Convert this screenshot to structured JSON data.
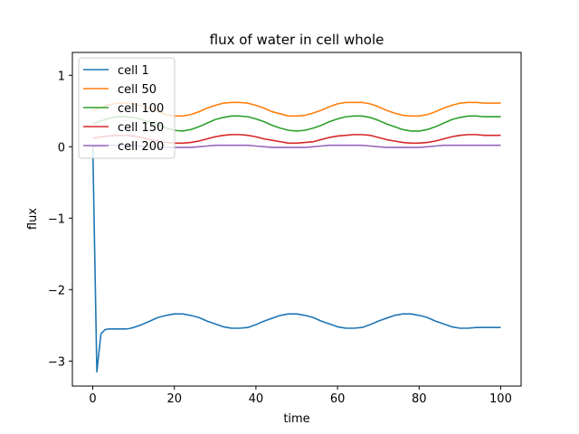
{
  "chart_data": {
    "type": "line",
    "title": "flux of water in cell whole",
    "xlabel": "time",
    "ylabel": "flux",
    "xlim": [
      -5,
      105
    ],
    "ylim": [
      -3.35,
      1.32
    ],
    "xticks": [
      0,
      20,
      40,
      60,
      80,
      100
    ],
    "xtick_labels": [
      "0",
      "20",
      "40",
      "60",
      "80",
      "100"
    ],
    "yticks": [
      -3,
      -2,
      -1,
      0,
      1
    ],
    "ytick_labels": [
      "−3",
      "−2",
      "−1",
      "0",
      "1"
    ],
    "grid": false,
    "legend_position": "top-left",
    "series": [
      {
        "name": "cell 1",
        "color": "#1f77b4",
        "x": [
          0,
          1,
          2,
          3,
          4,
          5,
          6,
          7,
          8,
          9,
          10,
          12,
          14,
          16,
          18,
          20,
          22,
          24,
          26,
          28,
          30,
          32,
          34,
          36,
          38,
          40,
          42,
          44,
          46,
          48,
          50,
          52,
          54,
          56,
          58,
          60,
          62,
          64,
          66,
          68,
          70,
          72,
          74,
          76,
          78,
          80,
          82,
          84,
          86,
          88,
          90,
          92,
          94,
          96,
          98,
          100
        ],
        "y": [
          0.02,
          -3.15,
          -2.62,
          -2.56,
          -2.55,
          -2.55,
          -2.55,
          -2.55,
          -2.55,
          -2.545,
          -2.53,
          -2.49,
          -2.44,
          -2.39,
          -2.36,
          -2.34,
          -2.34,
          -2.36,
          -2.39,
          -2.44,
          -2.48,
          -2.52,
          -2.54,
          -2.54,
          -2.53,
          -2.49,
          -2.44,
          -2.4,
          -2.36,
          -2.34,
          -2.34,
          -2.36,
          -2.39,
          -2.44,
          -2.48,
          -2.52,
          -2.54,
          -2.54,
          -2.53,
          -2.49,
          -2.44,
          -2.4,
          -2.36,
          -2.34,
          -2.34,
          -2.36,
          -2.39,
          -2.44,
          -2.48,
          -2.52,
          -2.54,
          -2.54,
          -2.53,
          -2.53,
          -2.53,
          -2.53
        ]
      },
      {
        "name": "cell 50",
        "color": "#ff7f0e",
        "x": [
          0,
          2,
          4,
          6,
          8,
          10,
          12,
          14,
          16,
          18,
          20,
          22,
          24,
          26,
          28,
          30,
          32,
          34,
          36,
          38,
          40,
          42,
          44,
          46,
          48,
          50,
          52,
          54,
          56,
          58,
          60,
          62,
          64,
          66,
          68,
          70,
          72,
          74,
          76,
          78,
          80,
          82,
          84,
          86,
          88,
          90,
          92,
          94,
          96,
          98,
          100
        ],
        "y": [
          0.5,
          0.55,
          0.59,
          0.61,
          0.61,
          0.6,
          0.57,
          0.53,
          0.49,
          0.45,
          0.43,
          0.43,
          0.45,
          0.49,
          0.54,
          0.58,
          0.61,
          0.62,
          0.62,
          0.61,
          0.58,
          0.54,
          0.49,
          0.46,
          0.43,
          0.43,
          0.44,
          0.47,
          0.51,
          0.56,
          0.6,
          0.62,
          0.62,
          0.62,
          0.6,
          0.56,
          0.51,
          0.47,
          0.44,
          0.43,
          0.43,
          0.45,
          0.49,
          0.54,
          0.58,
          0.61,
          0.62,
          0.62,
          0.61,
          0.61,
          0.61
        ]
      },
      {
        "name": "cell 100",
        "color": "#2ca02c",
        "x": [
          0,
          2,
          4,
          6,
          8,
          10,
          12,
          14,
          16,
          18,
          20,
          22,
          24,
          26,
          28,
          30,
          32,
          34,
          36,
          38,
          40,
          42,
          44,
          46,
          48,
          50,
          52,
          54,
          56,
          58,
          60,
          62,
          64,
          66,
          68,
          70,
          72,
          74,
          76,
          78,
          80,
          82,
          84,
          86,
          88,
          90,
          92,
          94,
          96,
          98,
          100
        ],
        "y": [
          0.32,
          0.36,
          0.4,
          0.42,
          0.42,
          0.41,
          0.38,
          0.34,
          0.3,
          0.26,
          0.23,
          0.22,
          0.24,
          0.28,
          0.33,
          0.38,
          0.41,
          0.43,
          0.43,
          0.42,
          0.39,
          0.35,
          0.3,
          0.26,
          0.23,
          0.22,
          0.23,
          0.26,
          0.3,
          0.35,
          0.39,
          0.42,
          0.43,
          0.43,
          0.41,
          0.37,
          0.32,
          0.28,
          0.24,
          0.22,
          0.22,
          0.24,
          0.28,
          0.33,
          0.38,
          0.41,
          0.43,
          0.43,
          0.42,
          0.42,
          0.42
        ]
      },
      {
        "name": "cell 150",
        "color": "#d62728",
        "x": [
          0,
          2,
          4,
          6,
          8,
          10,
          12,
          14,
          16,
          18,
          20,
          22,
          24,
          26,
          28,
          30,
          32,
          34,
          36,
          38,
          40,
          42,
          44,
          46,
          48,
          50,
          52,
          54,
          56,
          58,
          60,
          62,
          64,
          66,
          68,
          70,
          72,
          74,
          76,
          78,
          80,
          82,
          84,
          86,
          88,
          90,
          92,
          94,
          96,
          98,
          100
        ],
        "y": [
          0.12,
          0.14,
          0.15,
          0.16,
          0.16,
          0.15,
          0.13,
          0.1,
          0.08,
          0.06,
          0.05,
          0.05,
          0.06,
          0.08,
          0.11,
          0.14,
          0.16,
          0.17,
          0.17,
          0.16,
          0.14,
          0.11,
          0.09,
          0.07,
          0.05,
          0.05,
          0.06,
          0.07,
          0.1,
          0.13,
          0.15,
          0.16,
          0.17,
          0.17,
          0.16,
          0.13,
          0.1,
          0.08,
          0.06,
          0.05,
          0.05,
          0.06,
          0.08,
          0.11,
          0.14,
          0.16,
          0.17,
          0.17,
          0.16,
          0.16,
          0.16
        ]
      },
      {
        "name": "cell 200",
        "color": "#9467bd",
        "x": [
          0,
          2,
          4,
          6,
          8,
          10,
          12,
          14,
          16,
          18,
          20,
          22,
          24,
          26,
          28,
          30,
          32,
          34,
          36,
          38,
          40,
          42,
          44,
          46,
          48,
          50,
          52,
          54,
          56,
          58,
          60,
          62,
          64,
          66,
          68,
          70,
          72,
          74,
          76,
          78,
          80,
          82,
          84,
          86,
          88,
          90,
          92,
          94,
          96,
          98,
          100
        ],
        "y": [
          0.0,
          0.01,
          0.02,
          0.02,
          0.02,
          0.02,
          0.01,
          0.0,
          -0.01,
          -0.01,
          -0.01,
          -0.01,
          -0.01,
          0.0,
          0.01,
          0.02,
          0.02,
          0.02,
          0.02,
          0.02,
          0.01,
          0.0,
          -0.01,
          -0.01,
          -0.01,
          -0.01,
          -0.01,
          0.0,
          0.01,
          0.02,
          0.02,
          0.02,
          0.02,
          0.02,
          0.01,
          0.0,
          -0.01,
          -0.01,
          -0.01,
          -0.01,
          -0.01,
          0.0,
          0.01,
          0.02,
          0.02,
          0.02,
          0.02,
          0.02,
          0.02,
          0.02,
          0.02
        ]
      }
    ]
  }
}
